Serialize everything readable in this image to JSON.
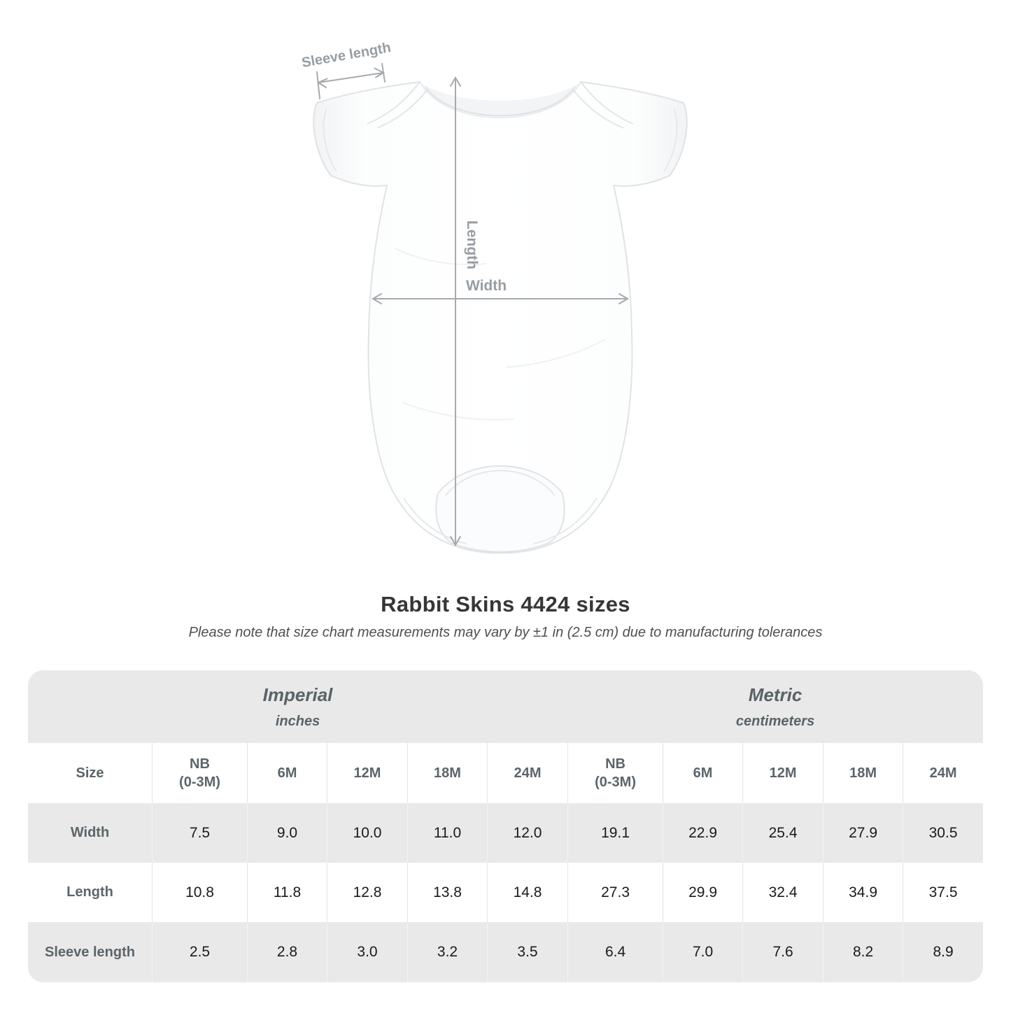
{
  "title": "Rabbit Skins 4424 sizes",
  "subtitle": "Please note that size chart measurements may vary by ±1 in (2.5 cm) due to manufacturing tolerances",
  "diagram": {
    "labels": {
      "sleeve_length": "Sleeve length",
      "length": "Length",
      "width": "Width"
    },
    "colors": {
      "dimension_line": "#a6aaae",
      "dimension_label": "#979da2",
      "garment_outline": "#e0e3e6"
    }
  },
  "chart_data": {
    "type": "table",
    "title": "Rabbit Skins 4424 sizes",
    "unit_groups": [
      {
        "label": "Imperial",
        "sublabel": "inches"
      },
      {
        "label": "Metric",
        "sublabel": "centimeters"
      }
    ],
    "size_header": "Size",
    "columns": [
      [
        "NB",
        "(0-3M)"
      ],
      [
        "6M"
      ],
      [
        "12M"
      ],
      [
        "18M"
      ],
      [
        "24M"
      ],
      [
        "NB",
        "(0-3M)"
      ],
      [
        "6M"
      ],
      [
        "12M"
      ],
      [
        "18M"
      ],
      [
        "24M"
      ]
    ],
    "rows": [
      {
        "label": "Width",
        "values": [
          "7.5",
          "9.0",
          "10.0",
          "11.0",
          "12.0",
          "19.1",
          "22.9",
          "25.4",
          "27.9",
          "30.5"
        ]
      },
      {
        "label": "Length",
        "values": [
          "10.8",
          "11.8",
          "12.8",
          "13.8",
          "14.8",
          "27.3",
          "29.9",
          "32.4",
          "34.9",
          "37.5"
        ]
      },
      {
        "label": "Sleeve length",
        "values": [
          "2.5",
          "2.8",
          "3.0",
          "3.2",
          "3.5",
          "6.4",
          "7.0",
          "7.6",
          "8.2",
          "8.9"
        ]
      }
    ],
    "colors": {
      "band_bg": "#e9e9e9",
      "alt_row_bg": "#e9e9e9",
      "header_text": "#5c6569",
      "value_text": "#191a1c"
    }
  }
}
